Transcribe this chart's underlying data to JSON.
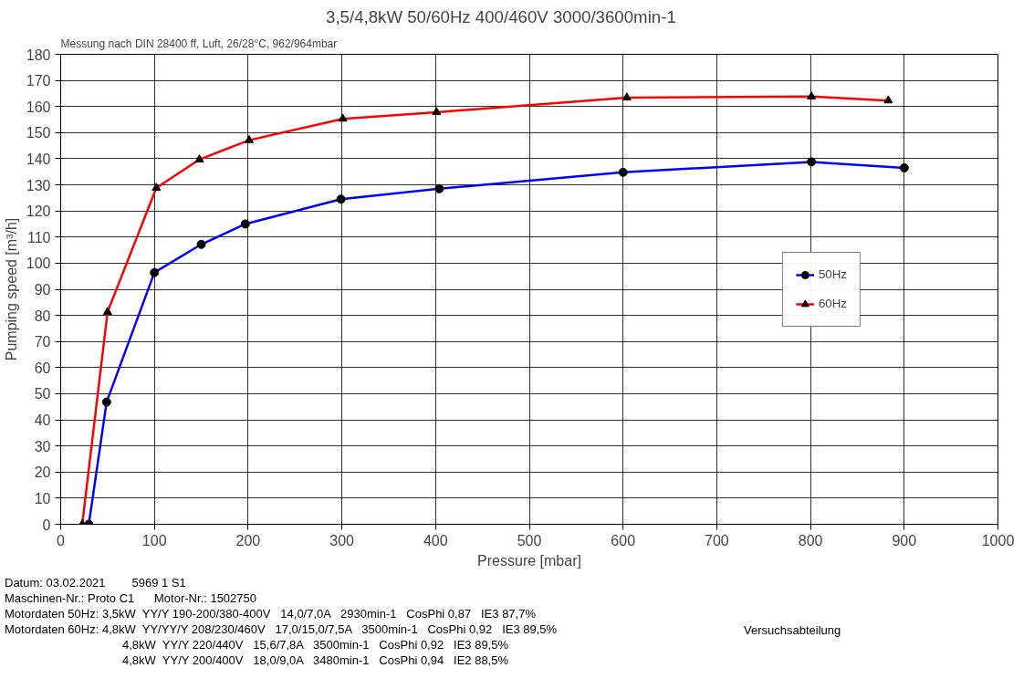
{
  "chart_data": {
    "type": "line",
    "title": "3,5/4,8kW     50/60Hz     400/460V     3000/3600min-1",
    "xlabel": "Pressure [mbar]",
    "ylabel": "Pumping speed [m³/h]",
    "xlim": [
      0,
      1000
    ],
    "xticks": [
      0,
      100,
      200,
      300,
      400,
      500,
      600,
      700,
      800,
      900,
      1000
    ],
    "ylim": [
      0,
      180
    ],
    "yticks": [
      0,
      10,
      20,
      30,
      40,
      50,
      60,
      70,
      80,
      90,
      100,
      110,
      120,
      130,
      140,
      150,
      160,
      170,
      180
    ],
    "grid": true,
    "legend": "right",
    "line_style": "solid",
    "series": [
      {
        "name": "50Hz",
        "color": "#0000ff",
        "marker": "circle",
        "x": [
          30,
          49,
          100,
          150,
          197,
          299,
          404,
          600,
          801,
          900
        ],
        "values": [
          0,
          46.8,
          96.4,
          107.2,
          115,
          124.5,
          128.5,
          134.8,
          138.8,
          136.5
        ]
      },
      {
        "name": "60Hz",
        "color": "#ff0000",
        "marker": "triangle",
        "x": [
          23,
          50,
          102,
          148,
          201,
          301,
          401,
          604,
          801,
          883
        ],
        "values": [
          0,
          81.3,
          128.8,
          139.7,
          147.1,
          155.3,
          157.8,
          163.4,
          163.8,
          162.3
        ]
      }
    ],
    "annotations": [
      "Messung nach DIN 28400 ff, Luft, 26/28°C, 962/964mbar",
      "Datum: 03.02.2021        5969 1 S1",
      "Maschinen-Nr.: Proto C1      Motor-Nr.: 1502750",
      "Motordaten 50Hz: 3,5kW  YY/Y 190-200/380-400V   14,0/7,0A   2930min-1   CosPhi 0,87   IE3 87,7%",
      "Motordaten 60Hz: 4,8kW  YY/YY/Y 208/230/460V   17,0/15,0/7,5A   3500min-1   CosPhi 0,92   IE3 89,5%",
      "4,8kW  YY/Y 220/440V   15,6/7,8A   3500min-1   CosPhi 0,92   IE3 89,5%",
      "4,8kW  YY/Y 200/400V   18,0/9,0A   3480min-1   CosPhi 0,94   IE2 88,5%",
      "Versuchsabteilung"
    ]
  }
}
